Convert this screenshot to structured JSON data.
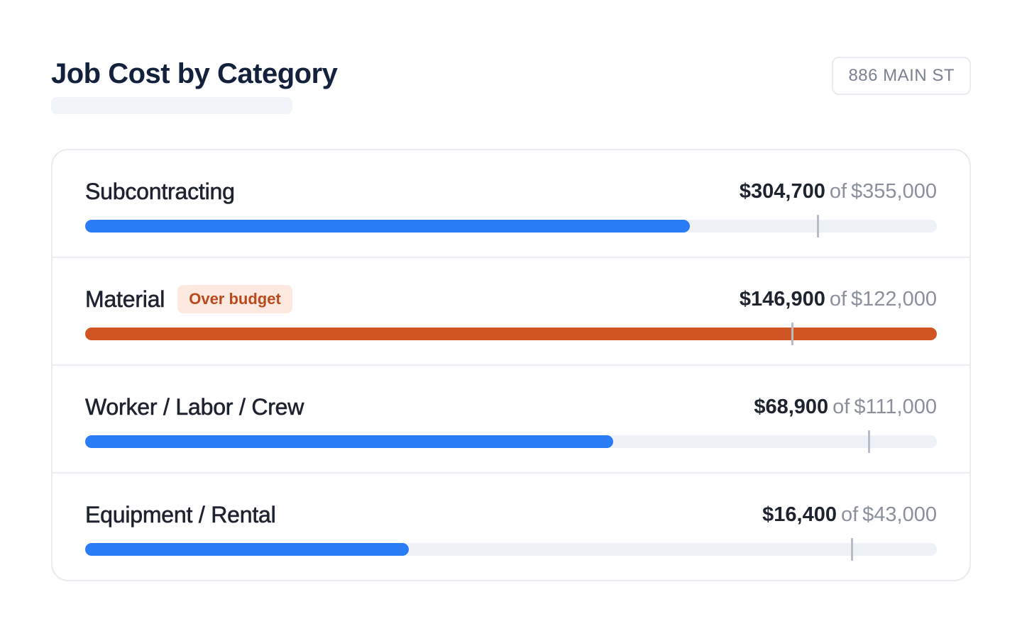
{
  "header": {
    "title": "Job Cost by Category",
    "address": "886 MAIN ST"
  },
  "colors": {
    "under_budget_bar": "#2a7cf6",
    "over_budget_bar": "#d15522",
    "track": "#eef2f7",
    "marker": "#b6bcc7",
    "badge_bg": "#fde9df",
    "badge_text": "#b84a1e"
  },
  "categories": [
    {
      "label": "Subcontracting",
      "spent": "$304,700",
      "of": "of",
      "budget": "$355,000",
      "spent_value": 304700,
      "budget_value": 355000,
      "progress_fraction": 0.71,
      "budget_marker_fraction": 0.86,
      "over_budget": false
    },
    {
      "label": "Material",
      "badge": "Over budget",
      "spent": "$146,900",
      "of": "of",
      "budget": "$122,000",
      "spent_value": 146900,
      "budget_value": 122000,
      "progress_fraction": 1.0,
      "budget_marker_fraction": 0.83,
      "over_budget": true
    },
    {
      "label": "Worker / Labor / Crew",
      "spent": "$68,900",
      "of": "of",
      "budget": "$111,000",
      "spent_value": 68900,
      "budget_value": 111000,
      "progress_fraction": 0.62,
      "budget_marker_fraction": 0.92,
      "over_budget": false
    },
    {
      "label": "Equipment / Rental",
      "spent": "$16,400",
      "of": "of",
      "budget": "$43,000",
      "spent_value": 16400,
      "budget_value": 43000,
      "progress_fraction": 0.38,
      "budget_marker_fraction": 0.9,
      "over_budget": false
    }
  ]
}
